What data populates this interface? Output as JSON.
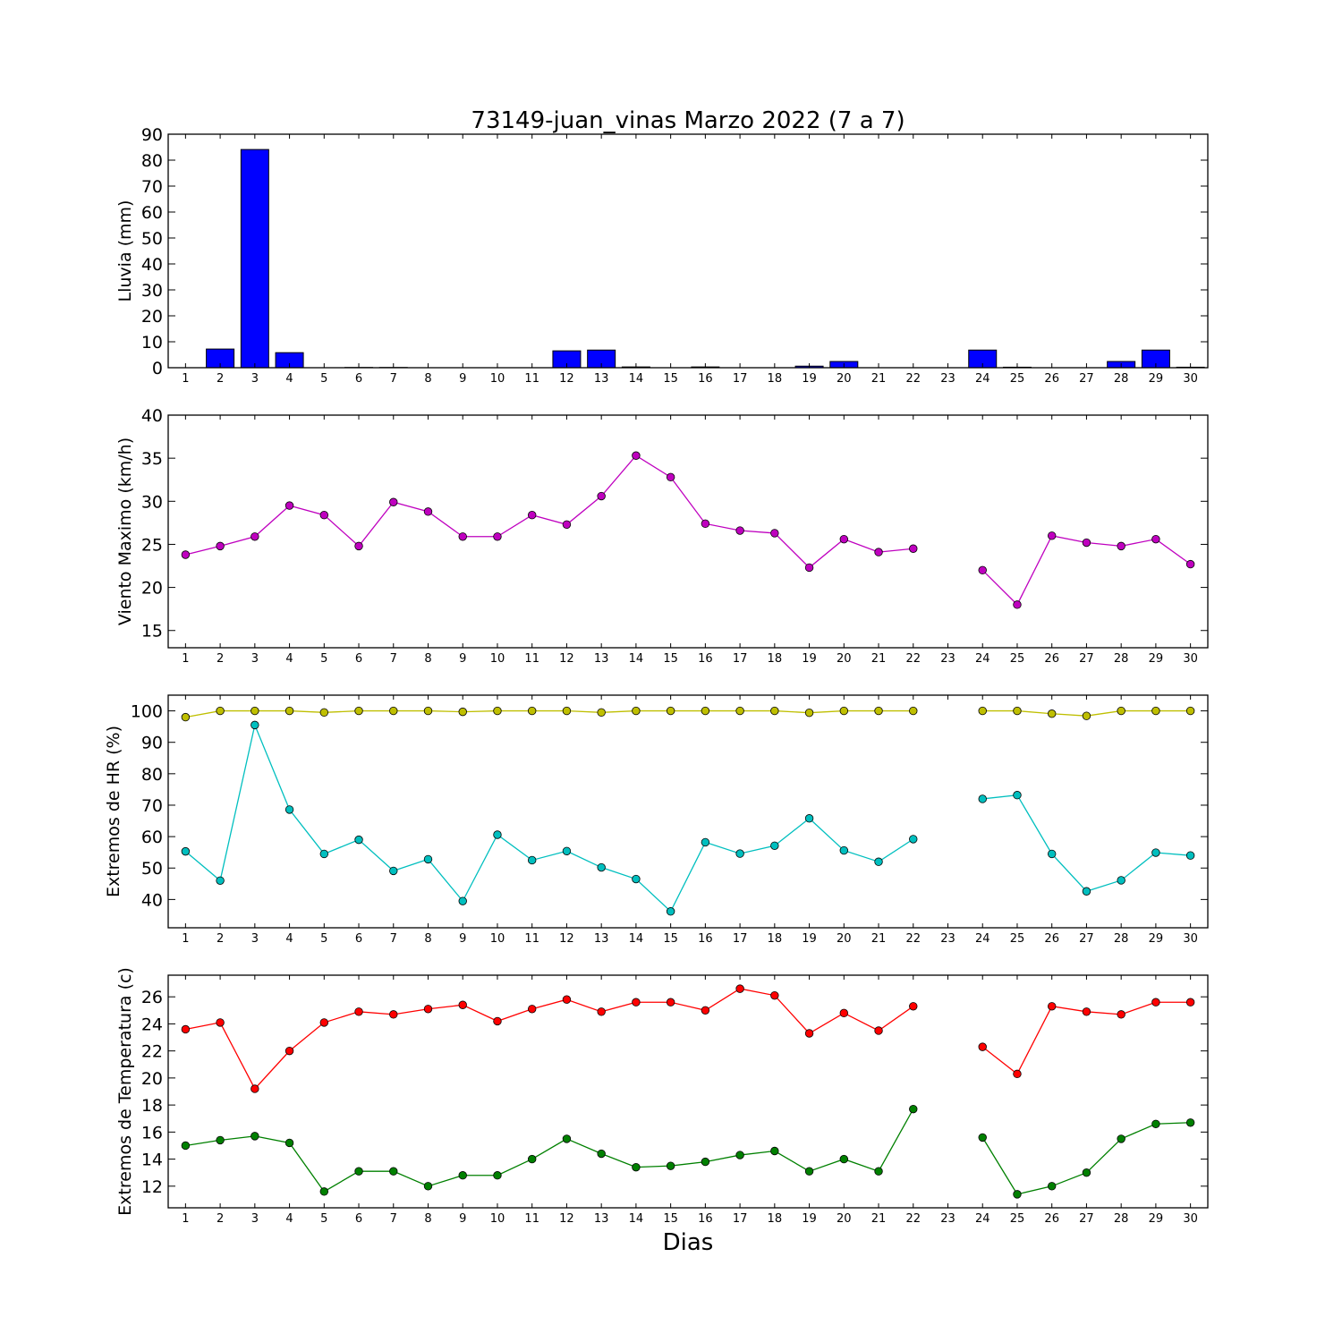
{
  "chart_data": [
    {
      "type": "bar",
      "title": "73149-juan_vinas Marzo 2022  (7 a 7)",
      "ylabel": "Lluvia (mm)",
      "xlabel": "",
      "x": [
        1,
        2,
        3,
        4,
        5,
        6,
        7,
        8,
        9,
        10,
        11,
        12,
        13,
        14,
        15,
        16,
        17,
        18,
        19,
        20,
        21,
        22,
        23,
        24,
        25,
        26,
        27,
        28,
        29,
        30
      ],
      "ylim": [
        0,
        90
      ],
      "yticks": [
        0,
        10,
        20,
        30,
        40,
        50,
        60,
        70,
        80,
        90
      ],
      "grid": false,
      "series": [
        {
          "color": "#0000ff",
          "values": [
            0,
            7.2,
            84.1,
            5.8,
            0,
            0.1,
            0.1,
            0,
            0,
            0,
            0,
            6.5,
            6.8,
            0.3,
            0,
            0.3,
            0,
            0,
            0.6,
            2.4,
            0,
            0,
            0,
            6.8,
            0.2,
            0,
            0,
            2.4,
            6.8,
            0.2
          ]
        }
      ]
    },
    {
      "type": "line",
      "title": "",
      "ylabel": "Viento Maximo (km/h)",
      "xlabel": "",
      "x": [
        1,
        2,
        3,
        4,
        5,
        6,
        7,
        8,
        9,
        10,
        11,
        12,
        13,
        14,
        15,
        16,
        17,
        18,
        19,
        20,
        21,
        22,
        23,
        24,
        25,
        26,
        27,
        28,
        29,
        30
      ],
      "ylim": [
        13,
        40
      ],
      "yticks": [
        15,
        20,
        25,
        30,
        35,
        40
      ],
      "grid": false,
      "series": [
        {
          "color": "#bf00bf",
          "values": [
            23.8,
            24.8,
            25.9,
            29.5,
            28.4,
            24.8,
            29.9,
            28.8,
            25.9,
            25.9,
            28.4,
            27.3,
            30.6,
            35.3,
            32.8,
            27.4,
            26.6,
            26.3,
            22.3,
            25.6,
            24.1,
            24.5,
            null,
            22.0,
            18.0,
            26.0,
            25.2,
            24.8,
            25.6,
            22.7
          ]
        }
      ]
    },
    {
      "type": "line",
      "title": "",
      "ylabel": "Extremos de HR (%)",
      "xlabel": "",
      "x": [
        1,
        2,
        3,
        4,
        5,
        6,
        7,
        8,
        9,
        10,
        11,
        12,
        13,
        14,
        15,
        16,
        17,
        18,
        19,
        20,
        21,
        22,
        23,
        24,
        25,
        26,
        27,
        28,
        29,
        30
      ],
      "ylim": [
        31,
        105
      ],
      "yticks": [
        40,
        50,
        60,
        70,
        80,
        90,
        100
      ],
      "grid": false,
      "series": [
        {
          "color": "#bfbf00",
          "values": [
            98,
            100,
            100,
            100,
            99.5,
            100,
            100,
            100,
            99.7,
            100,
            100,
            100,
            99.5,
            100,
            100,
            100,
            100,
            100,
            99.4,
            100,
            100,
            100,
            null,
            100,
            100,
            99.1,
            98.4,
            100,
            100,
            100
          ]
        },
        {
          "color": "#00bfbf",
          "values": [
            55.3,
            46.0,
            95.5,
            68.6,
            54.5,
            59.0,
            49.1,
            52.8,
            39.5,
            60.6,
            52.5,
            55.4,
            50.2,
            46.5,
            36.2,
            58.2,
            54.6,
            57.1,
            65.8,
            55.6,
            52.0,
            59.2,
            null,
            72.0,
            73.2,
            54.5,
            42.6,
            46.1,
            54.9,
            54.0
          ]
        }
      ]
    },
    {
      "type": "line",
      "title": "",
      "ylabel": "Extremos de Temperatura (c)",
      "xlabel": "Dias",
      "x": [
        1,
        2,
        3,
        4,
        5,
        6,
        7,
        8,
        9,
        10,
        11,
        12,
        13,
        14,
        15,
        16,
        17,
        18,
        19,
        20,
        21,
        22,
        23,
        24,
        25,
        26,
        27,
        28,
        29,
        30
      ],
      "ylim": [
        10.4,
        27.6
      ],
      "yticks": [
        12,
        14,
        16,
        18,
        20,
        22,
        24,
        26
      ],
      "grid": false,
      "series": [
        {
          "color": "#ff0000",
          "values": [
            23.6,
            24.1,
            19.2,
            22.0,
            24.1,
            24.9,
            24.7,
            25.1,
            25.4,
            24.2,
            25.1,
            25.8,
            24.9,
            25.6,
            25.6,
            25.0,
            26.6,
            26.1,
            23.3,
            24.8,
            23.5,
            25.3,
            null,
            22.3,
            20.3,
            25.3,
            24.9,
            24.7,
            25.6,
            25.6
          ]
        },
        {
          "color": "#008000",
          "values": [
            15.0,
            15.4,
            15.7,
            15.2,
            11.6,
            13.1,
            13.1,
            12.0,
            12.8,
            12.8,
            14.0,
            15.5,
            14.4,
            13.4,
            13.5,
            13.8,
            14.3,
            14.6,
            13.1,
            14.0,
            13.1,
            17.7,
            null,
            15.6,
            11.4,
            12.0,
            13.0,
            15.5,
            16.6,
            16.7
          ]
        }
      ]
    }
  ]
}
